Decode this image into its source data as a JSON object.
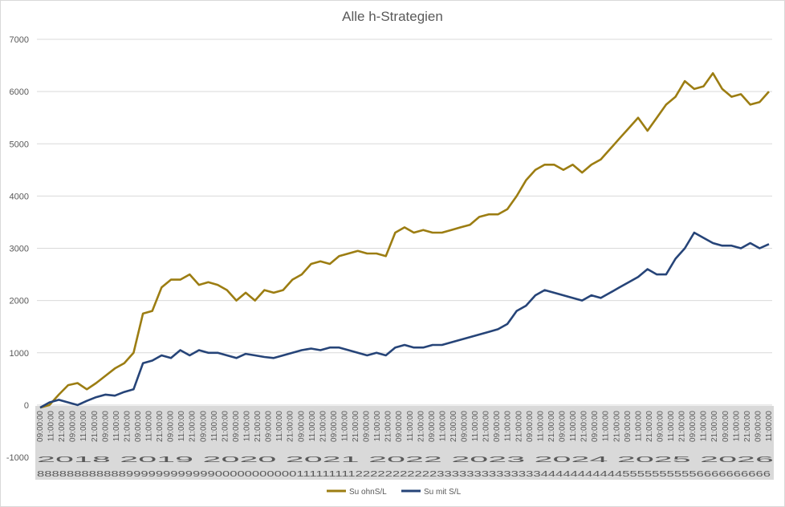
{
  "chart_data": {
    "type": "line",
    "title": "Alle h-Strategien",
    "xlabel": "",
    "ylabel": "",
    "ylim": [
      -1000,
      7000
    ],
    "yticks": [
      "-1000",
      "0",
      "1000",
      "2000",
      "3000",
      "4000",
      "5000",
      "6000",
      "7000"
    ],
    "grid": true,
    "legend_position": "bottom",
    "x_tick_time_labels": [
      "09:00:00",
      "11:00:00",
      "21:00:00"
    ],
    "x_tick_footer_text": "2018 2019 2020 2021 2022 2023 2024 2025 2026",
    "x_tick_digit_row": "8888888888889999999999990000000000011111111122222222222333333333333334444444444455555555556666666666",
    "series": [
      {
        "name": "Su ohnS/L",
        "color": "#9C7D12",
        "points": [
          [
            0,
            -50
          ],
          [
            1,
            0
          ],
          [
            2,
            200
          ],
          [
            3,
            380
          ],
          [
            4,
            420
          ],
          [
            5,
            300
          ],
          [
            6,
            420
          ],
          [
            7,
            560
          ],
          [
            8,
            700
          ],
          [
            9,
            800
          ],
          [
            10,
            1000
          ],
          [
            11,
            1750
          ],
          [
            12,
            1800
          ],
          [
            13,
            2250
          ],
          [
            14,
            2400
          ],
          [
            15,
            2400
          ],
          [
            16,
            2500
          ],
          [
            17,
            2300
          ],
          [
            18,
            2350
          ],
          [
            19,
            2300
          ],
          [
            20,
            2200
          ],
          [
            21,
            2000
          ],
          [
            22,
            2150
          ],
          [
            23,
            2000
          ],
          [
            24,
            2200
          ],
          [
            25,
            2150
          ],
          [
            26,
            2200
          ],
          [
            27,
            2400
          ],
          [
            28,
            2500
          ],
          [
            29,
            2700
          ],
          [
            30,
            2750
          ],
          [
            31,
            2700
          ],
          [
            32,
            2850
          ],
          [
            33,
            2900
          ],
          [
            34,
            2950
          ],
          [
            35,
            2900
          ],
          [
            36,
            2900
          ],
          [
            37,
            2850
          ],
          [
            38,
            3300
          ],
          [
            39,
            3400
          ],
          [
            40,
            3300
          ],
          [
            41,
            3350
          ],
          [
            42,
            3300
          ],
          [
            43,
            3300
          ],
          [
            44,
            3350
          ],
          [
            45,
            3400
          ],
          [
            46,
            3450
          ],
          [
            47,
            3600
          ],
          [
            48,
            3650
          ],
          [
            49,
            3650
          ],
          [
            50,
            3750
          ],
          [
            51,
            4000
          ],
          [
            52,
            4300
          ],
          [
            53,
            4500
          ],
          [
            54,
            4600
          ],
          [
            55,
            4600
          ],
          [
            56,
            4500
          ],
          [
            57,
            4600
          ],
          [
            58,
            4450
          ],
          [
            59,
            4600
          ],
          [
            60,
            4700
          ],
          [
            61,
            4900
          ],
          [
            62,
            5100
          ],
          [
            63,
            5300
          ],
          [
            64,
            5500
          ],
          [
            65,
            5250
          ],
          [
            66,
            5500
          ],
          [
            67,
            5750
          ],
          [
            68,
            5900
          ],
          [
            69,
            6200
          ],
          [
            70,
            6050
          ],
          [
            71,
            6100
          ],
          [
            72,
            6350
          ],
          [
            73,
            6050
          ],
          [
            74,
            5900
          ],
          [
            75,
            5950
          ],
          [
            76,
            5750
          ],
          [
            77,
            5800
          ],
          [
            78,
            6000
          ]
        ]
      },
      {
        "name": "Su mit S/L",
        "color": "#264478",
        "points": [
          [
            0,
            -50
          ],
          [
            1,
            50
          ],
          [
            2,
            100
          ],
          [
            3,
            50
          ],
          [
            4,
            0
          ],
          [
            5,
            80
          ],
          [
            6,
            150
          ],
          [
            7,
            200
          ],
          [
            8,
            180
          ],
          [
            9,
            250
          ],
          [
            10,
            300
          ],
          [
            11,
            800
          ],
          [
            12,
            850
          ],
          [
            13,
            950
          ],
          [
            14,
            900
          ],
          [
            15,
            1050
          ],
          [
            16,
            950
          ],
          [
            17,
            1050
          ],
          [
            18,
            1000
          ],
          [
            19,
            1000
          ],
          [
            20,
            950
          ],
          [
            21,
            900
          ],
          [
            22,
            980
          ],
          [
            23,
            950
          ],
          [
            24,
            920
          ],
          [
            25,
            900
          ],
          [
            26,
            950
          ],
          [
            27,
            1000
          ],
          [
            28,
            1050
          ],
          [
            29,
            1080
          ],
          [
            30,
            1050
          ],
          [
            31,
            1100
          ],
          [
            32,
            1100
          ],
          [
            33,
            1050
          ],
          [
            34,
            1000
          ],
          [
            35,
            950
          ],
          [
            36,
            1000
          ],
          [
            37,
            950
          ],
          [
            38,
            1100
          ],
          [
            39,
            1150
          ],
          [
            40,
            1100
          ],
          [
            41,
            1100
          ],
          [
            42,
            1150
          ],
          [
            43,
            1150
          ],
          [
            44,
            1200
          ],
          [
            45,
            1250
          ],
          [
            46,
            1300
          ],
          [
            47,
            1350
          ],
          [
            48,
            1400
          ],
          [
            49,
            1450
          ],
          [
            50,
            1550
          ],
          [
            51,
            1800
          ],
          [
            52,
            1900
          ],
          [
            53,
            2100
          ],
          [
            54,
            2200
          ],
          [
            55,
            2150
          ],
          [
            56,
            2100
          ],
          [
            57,
            2050
          ],
          [
            58,
            2000
          ],
          [
            59,
            2100
          ],
          [
            60,
            2050
          ],
          [
            61,
            2150
          ],
          [
            62,
            2250
          ],
          [
            63,
            2350
          ],
          [
            64,
            2450
          ],
          [
            65,
            2600
          ],
          [
            66,
            2500
          ],
          [
            67,
            2500
          ],
          [
            68,
            2800
          ],
          [
            69,
            3000
          ],
          [
            70,
            3300
          ],
          [
            71,
            3200
          ],
          [
            72,
            3100
          ],
          [
            73,
            3050
          ],
          [
            74,
            3050
          ],
          [
            75,
            3000
          ],
          [
            76,
            3100
          ],
          [
            77,
            3000
          ],
          [
            78,
            3080
          ]
        ]
      }
    ]
  }
}
